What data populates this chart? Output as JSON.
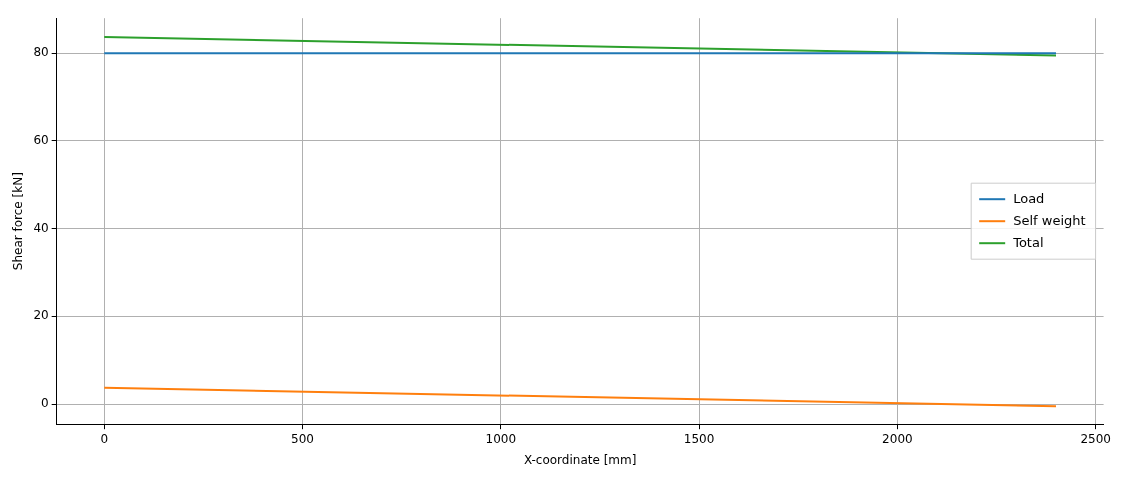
{
  "chart_data": {
    "type": "line",
    "xlabel": "X-coordinate [mm]",
    "ylabel": "Shear force [kN]",
    "x": [
      0,
      2400
    ],
    "series": [
      {
        "name": "Load",
        "color": "#1f77b4",
        "values": [
          80,
          80
        ]
      },
      {
        "name": "Self weight",
        "color": "#ff7f0e",
        "values": [
          3.7,
          -0.5
        ]
      },
      {
        "name": "Total",
        "color": "#2ca02c",
        "values": [
          83.7,
          79.5
        ]
      }
    ],
    "xlim": [
      -120,
      2520
    ],
    "xticks": [
      0,
      500,
      1000,
      1500,
      2000,
      2500
    ],
    "ylim": [
      -4.6,
      88
    ],
    "yticks": [
      0,
      20,
      40,
      60,
      80
    ],
    "grid": true,
    "legend": "center right",
    "marker": "none",
    "line_style": "solid"
  }
}
